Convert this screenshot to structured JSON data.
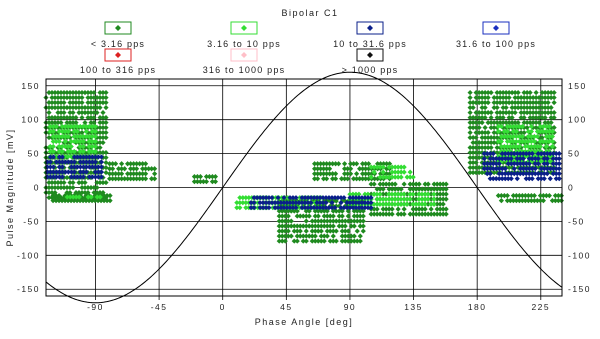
{
  "chart_data": {
    "type": "scatter",
    "title": "Bipolar C1",
    "xlabel": "Phase Angle [deg]",
    "ylabel": "Pulse Magnitude [mV]",
    "xlim": [
      -125,
      240
    ],
    "ylim": [
      -160,
      160
    ],
    "x_ticks": [
      -90,
      -45,
      0,
      45,
      90,
      135,
      180,
      225
    ],
    "x_tick_labels": [
      "-90",
      "-45",
      "0",
      "45",
      "90",
      "135",
      "180",
      "225"
    ],
    "y_ticks": [
      -150,
      -100,
      -50,
      0,
      50,
      100,
      150
    ],
    "y_tick_labels": [
      "-150",
      "-100",
      "-50",
      "0",
      "50",
      "100",
      "150"
    ],
    "grid": true,
    "legend_position": "top",
    "reference_curve": {
      "shape": "sine",
      "amplitude": 170,
      "period_deg": 360,
      "phase_deg": 0
    },
    "series": [
      {
        "name": "< 3.16 pps",
        "color": "#1f8a1f",
        "clusters": [
          {
            "x_range": [
              -125,
              -82
            ],
            "y_range": [
              -20,
              140
            ]
          },
          {
            "x_range": [
              -120,
              -78
            ],
            "y_range": [
              -20,
              -12
            ]
          },
          {
            "x_range": [
              -80,
              -48
            ],
            "y_range": [
              10,
              35
            ]
          },
          {
            "x_range": [
              -20,
              -5
            ],
            "y_range": [
              8,
              16
            ]
          },
          {
            "x_range": [
              40,
              100
            ],
            "y_range": [
              -80,
              -20
            ]
          },
          {
            "x_range": [
              65,
              120
            ],
            "y_range": [
              10,
              35
            ]
          },
          {
            "x_range": [
              105,
              160
            ],
            "y_range": [
              -40,
              5
            ]
          },
          {
            "x_range": [
              175,
              235
            ],
            "y_range": [
              20,
              140
            ]
          },
          {
            "x_range": [
              195,
              240
            ],
            "y_range": [
              -25,
              -12
            ]
          }
        ]
      },
      {
        "name": "3.16 to 10 pps",
        "color": "#33dd33",
        "clusters": [
          {
            "x_range": [
              -122,
              -90
            ],
            "y_range": [
              40,
              90
            ]
          },
          {
            "x_range": [
              -110,
              -85
            ],
            "y_range": [
              -20,
              -14
            ]
          },
          {
            "x_range": [
              10,
              70
            ],
            "y_range": [
              -35,
              -15
            ]
          },
          {
            "x_range": [
              90,
              150
            ],
            "y_range": [
              -30,
              -10
            ]
          },
          {
            "x_range": [
              105,
              135
            ],
            "y_range": [
              15,
              30
            ]
          },
          {
            "x_range": [
              195,
              235
            ],
            "y_range": [
              35,
              90
            ]
          }
        ]
      },
      {
        "name": "10 to 31.6 pps",
        "color": "#0a1f8a",
        "clusters": [
          {
            "x_range": [
              -124,
              -85
            ],
            "y_range": [
              10,
              45
            ]
          },
          {
            "x_range": [
              20,
              105
            ],
            "y_range": [
              -35,
              -15
            ]
          },
          {
            "x_range": [
              185,
              240
            ],
            "y_range": [
              10,
              50
            ]
          }
        ]
      },
      {
        "name": "31.6 to 100 pps",
        "color": "#1a2fbf",
        "clusters": []
      },
      {
        "name": "100 to 316 pps",
        "color": "#dd2222",
        "clusters": []
      },
      {
        "name": "316 to 1000 pps",
        "color": "#ffbfc8",
        "clusters": []
      },
      {
        "name": "> 1000 pps",
        "color": "#111111",
        "clusters": []
      }
    ]
  }
}
